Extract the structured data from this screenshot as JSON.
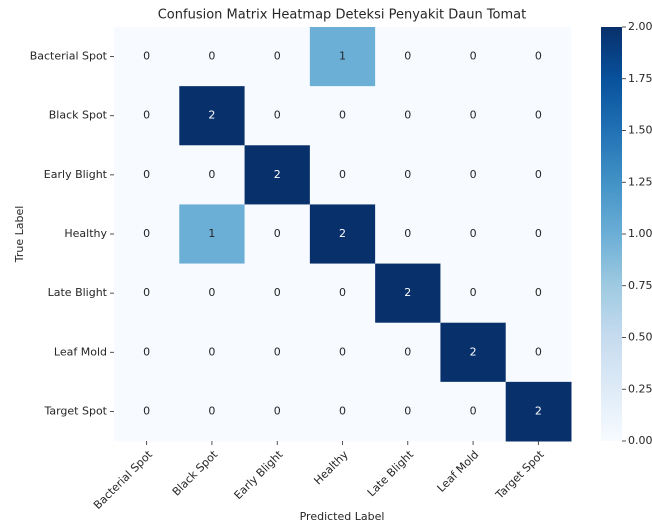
{
  "chart_data": {
    "type": "heatmap",
    "title": "Confusion Matrix Heatmap Deteksi Penyakit Daun Tomat",
    "xlabel": "Predicted Label",
    "ylabel": "True Label",
    "x_categories": [
      "Bacterial Spot",
      "Black Spot",
      "Early Blight",
      "Healthy",
      "Late Blight",
      "Leaf Mold",
      "Target Spot"
    ],
    "y_categories": [
      "Bacterial Spot",
      "Black Spot",
      "Early Blight",
      "Healthy",
      "Late Blight",
      "Leaf Mold",
      "Target Spot"
    ],
    "values": [
      [
        0,
        0,
        0,
        1,
        0,
        0,
        0
      ],
      [
        0,
        2,
        0,
        0,
        0,
        0,
        0
      ],
      [
        0,
        0,
        2,
        0,
        0,
        0,
        0
      ],
      [
        0,
        1,
        0,
        2,
        0,
        0,
        0
      ],
      [
        0,
        0,
        0,
        0,
        2,
        0,
        0
      ],
      [
        0,
        0,
        0,
        0,
        0,
        2,
        0
      ],
      [
        0,
        0,
        0,
        0,
        0,
        0,
        2
      ]
    ],
    "clim": [
      0,
      2
    ],
    "cticks": [
      {
        "value": 0,
        "label": "0.00"
      },
      {
        "value": 0.25,
        "label": "0.25"
      },
      {
        "value": 0.5,
        "label": "0.50"
      },
      {
        "value": 0.75,
        "label": "0.75"
      },
      {
        "value": 1,
        "label": "1.00"
      },
      {
        "value": 1.25,
        "label": "1.25"
      },
      {
        "value": 1.5,
        "label": "1.50"
      },
      {
        "value": 1.75,
        "label": "1.75"
      },
      {
        "value": 2,
        "label": "2.00"
      }
    ],
    "colormap": [
      "#f7fbff",
      "#deebf7",
      "#c6dbef",
      "#9ecae1",
      "#6baed6",
      "#4292c6",
      "#2171b5",
      "#08519c",
      "#08306b"
    ]
  }
}
